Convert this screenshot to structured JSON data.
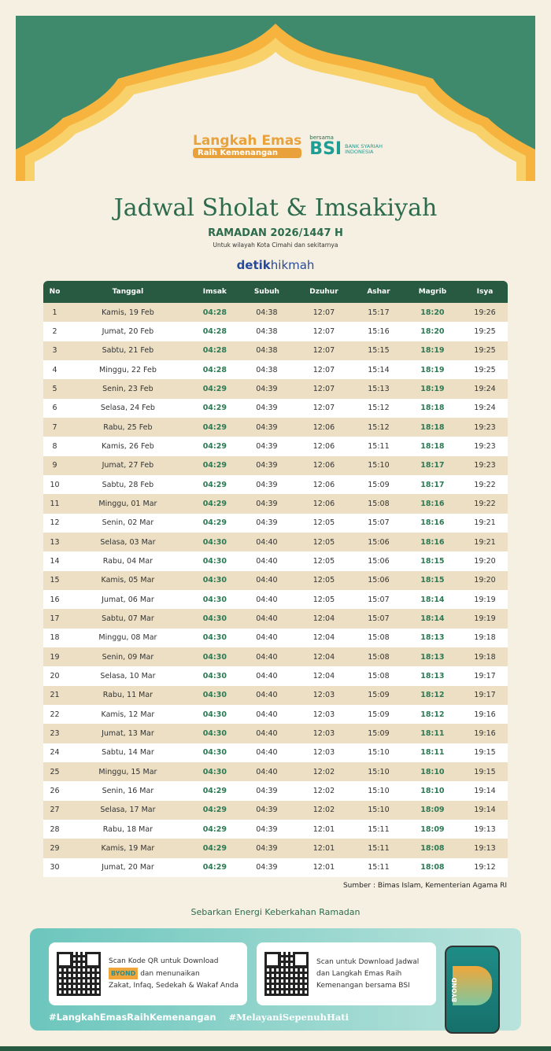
{
  "header": {
    "brand_title": "Langkah Emas",
    "brand_subtitle": "Raih Kemenangan",
    "bersama": "bersama",
    "bsi": "BSI",
    "bsi_full": "BANK SYARIAH INDONESIA"
  },
  "title": "Jadwal Sholat & Imsakiyah",
  "subtitle": "RAMADAN 2026/1447 H",
  "region": "Untuk wilayah Kota Cimahi dan sekitarnya",
  "publisher": {
    "bold": "detik",
    "light": "hikmah"
  },
  "colors": {
    "primary": "#285a42",
    "accent": "#e9a23b",
    "highlight": "#2d7a55",
    "row_alt": "#ecdfc4"
  },
  "table": {
    "columns": [
      "No",
      "Tanggal",
      "Imsak",
      "Subuh",
      "Dzuhur",
      "Ashar",
      "Magrib",
      "Isya"
    ],
    "rows": [
      [
        "1",
        "Kamis, 19 Feb",
        "04:28",
        "04:38",
        "12:07",
        "15:17",
        "18:20",
        "19:26"
      ],
      [
        "2",
        "Jumat, 20 Feb",
        "04:28",
        "04:38",
        "12:07",
        "15:16",
        "18:20",
        "19:25"
      ],
      [
        "3",
        "Sabtu, 21 Feb",
        "04:28",
        "04:38",
        "12:07",
        "15:15",
        "18:19",
        "19:25"
      ],
      [
        "4",
        "Minggu, 22 Feb",
        "04:28",
        "04:38",
        "12:07",
        "15:14",
        "18:19",
        "19:25"
      ],
      [
        "5",
        "Senin, 23 Feb",
        "04:29",
        "04:39",
        "12:07",
        "15:13",
        "18:19",
        "19:24"
      ],
      [
        "6",
        "Selasa, 24 Feb",
        "04:29",
        "04:39",
        "12:07",
        "15:12",
        "18:18",
        "19:24"
      ],
      [
        "7",
        "Rabu, 25 Feb",
        "04:29",
        "04:39",
        "12:06",
        "15:12",
        "18:18",
        "19:23"
      ],
      [
        "8",
        "Kamis, 26 Feb",
        "04:29",
        "04:39",
        "12:06",
        "15:11",
        "18:18",
        "19:23"
      ],
      [
        "9",
        "Jumat, 27 Feb",
        "04:29",
        "04:39",
        "12:06",
        "15:10",
        "18:17",
        "19:23"
      ],
      [
        "10",
        "Sabtu, 28 Feb",
        "04:29",
        "04:39",
        "12:06",
        "15:09",
        "18:17",
        "19:22"
      ],
      [
        "11",
        "Minggu, 01 Mar",
        "04:29",
        "04:39",
        "12:06",
        "15:08",
        "18:16",
        "19:22"
      ],
      [
        "12",
        "Senin, 02 Mar",
        "04:29",
        "04:39",
        "12:05",
        "15:07",
        "18:16",
        "19:21"
      ],
      [
        "13",
        "Selasa, 03 Mar",
        "04:30",
        "04:40",
        "12:05",
        "15:06",
        "18:16",
        "19:21"
      ],
      [
        "14",
        "Rabu, 04 Mar",
        "04:30",
        "04:40",
        "12:05",
        "15:06",
        "18:15",
        "19:20"
      ],
      [
        "15",
        "Kamis, 05 Mar",
        "04:30",
        "04:40",
        "12:05",
        "15:06",
        "18:15",
        "19:20"
      ],
      [
        "16",
        "Jumat, 06 Mar",
        "04:30",
        "04:40",
        "12:05",
        "15:07",
        "18:14",
        "19:19"
      ],
      [
        "17",
        "Sabtu, 07 Mar",
        "04:30",
        "04:40",
        "12:04",
        "15:07",
        "18:14",
        "19:19"
      ],
      [
        "18",
        "Minggu, 08 Mar",
        "04:30",
        "04:40",
        "12:04",
        "15:08",
        "18:13",
        "19:18"
      ],
      [
        "19",
        "Senin, 09 Mar",
        "04:30",
        "04:40",
        "12:04",
        "15:08",
        "18:13",
        "19:18"
      ],
      [
        "20",
        "Selasa, 10 Mar",
        "04:30",
        "04:40",
        "12:04",
        "15:08",
        "18:13",
        "19:17"
      ],
      [
        "21",
        "Rabu, 11 Mar",
        "04:30",
        "04:40",
        "12:03",
        "15:09",
        "18:12",
        "19:17"
      ],
      [
        "22",
        "Kamis, 12 Mar",
        "04:30",
        "04:40",
        "12:03",
        "15:09",
        "18:12",
        "19:16"
      ],
      [
        "23",
        "Jumat, 13 Mar",
        "04:30",
        "04:40",
        "12:03",
        "15:09",
        "18:11",
        "19:16"
      ],
      [
        "24",
        "Sabtu, 14 Mar",
        "04:30",
        "04:40",
        "12:03",
        "15:10",
        "18:11",
        "19:15"
      ],
      [
        "25",
        "Minggu, 15 Mar",
        "04:30",
        "04:40",
        "12:02",
        "15:10",
        "18:10",
        "19:15"
      ],
      [
        "26",
        "Senin, 16 Mar",
        "04:29",
        "04:39",
        "12:02",
        "15:10",
        "18:10",
        "19:14"
      ],
      [
        "27",
        "Selasa, 17 Mar",
        "04:29",
        "04:39",
        "12:02",
        "15:10",
        "18:09",
        "19:14"
      ],
      [
        "28",
        "Rabu, 18 Mar",
        "04:29",
        "04:39",
        "12:01",
        "15:11",
        "18:09",
        "19:13"
      ],
      [
        "29",
        "Kamis, 19 Mar",
        "04:29",
        "04:39",
        "12:01",
        "15:11",
        "18:08",
        "19:13"
      ],
      [
        "30",
        "Jumat, 20 Mar",
        "04:29",
        "04:39",
        "12:01",
        "15:11",
        "18:08",
        "19:12"
      ]
    ]
  },
  "source": "Sumber : Bimas Islam, Kementerian Agama RI",
  "tagline": "Sebarkan Energi Keberkahan Ramadan",
  "footer": {
    "card1": {
      "line1": "Scan Kode QR untuk Download",
      "byond": "BYOND",
      "line2": "dan menunaikan",
      "line3": "Zakat, Infaq, Sedekah & Wakaf Anda"
    },
    "card2": {
      "line1": "Scan untuk Download Jadwal",
      "line2": "dan Langkah Emas Raih",
      "line3": "Kemenangan bersama BSI"
    },
    "hashtag1": "#LangkahEmasRaihKemenangan",
    "hashtag2": "#MelayaniSepenuhHati",
    "phone_brand": "BYOND"
  }
}
